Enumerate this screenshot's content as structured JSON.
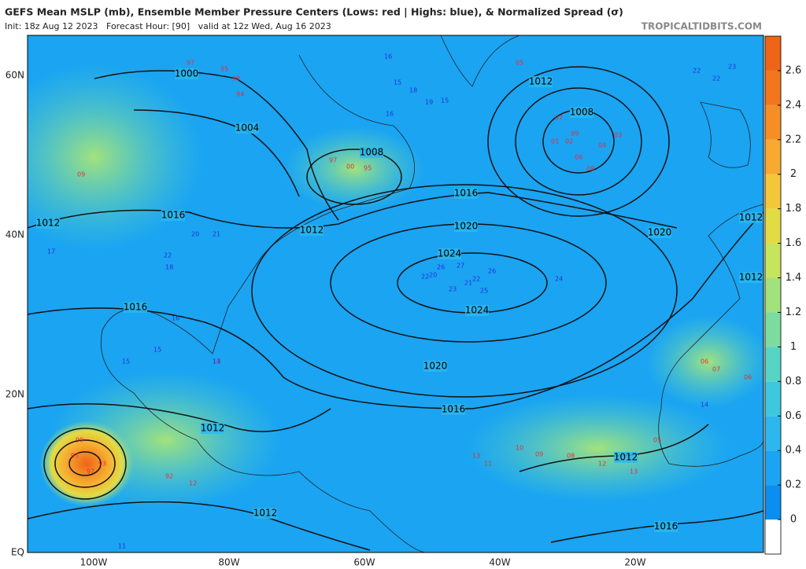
{
  "header": {
    "title": "GEFS Mean MSLP (mb), Ensemble Member Pressure Centers (Lows: red | Highs: blue), & Normalized Spread (σ)",
    "subtitle": "Init: 18z Aug 12 2023   Forecast Hour: [90]   valid at 12z Wed, Aug 16 2023",
    "credit": "TROPICALTIDBITS.COM"
  },
  "map": {
    "lat_labels": [
      "60N",
      "40N",
      "20N",
      "EQ"
    ],
    "lon_labels": [
      "100W",
      "80W",
      "60W",
      "40W",
      "20W"
    ],
    "isobar_labels": [
      "1000",
      "1004",
      "1008",
      "1008",
      "1012",
      "1016",
      "1012",
      "1012",
      "1016",
      "1020",
      "1020",
      "1024",
      "1024",
      "1016",
      "1020",
      "1016",
      "1012",
      "1012",
      "1012",
      "1016",
      "1012",
      "1012"
    ],
    "low_centers": [
      "97",
      "95",
      "98",
      "94",
      "00",
      "95",
      "97",
      "05",
      "07",
      "99",
      "02",
      "03",
      "01",
      "04",
      "06",
      "08",
      "09",
      "95",
      "97",
      "93",
      "92",
      "12",
      "13",
      "11",
      "10",
      "09",
      "08",
      "12",
      "13",
      "06",
      "07",
      "06",
      "05",
      "14",
      "99"
    ],
    "high_centers": [
      "16",
      "15",
      "18",
      "19",
      "15",
      "16",
      "22",
      "21",
      "20",
      "22",
      "26",
      "25",
      "27",
      "26",
      "24",
      "23",
      "22",
      "20",
      "21",
      "18",
      "16",
      "15",
      "14",
      "13",
      "15",
      "22",
      "22",
      "23",
      "17",
      "11"
    ]
  },
  "colorbar": {
    "lim": [
      -0.2,
      2.8
    ],
    "ticks": [
      0,
      0.2,
      0.4,
      0.6,
      0.8,
      1,
      1.2,
      1.4,
      1.6,
      1.8,
      2,
      2.2,
      2.4,
      2.6
    ],
    "colors": [
      "#ffffff",
      "#0a8ef0",
      "#1aa4f2",
      "#2cb8ee",
      "#3ec8e0",
      "#58d4c4",
      "#7cdca0",
      "#a2e27c",
      "#c6e45c",
      "#e2dc44",
      "#f4c63a",
      "#f8aa30",
      "#f68e26",
      "#f2761e",
      "#ee6418"
    ]
  }
}
